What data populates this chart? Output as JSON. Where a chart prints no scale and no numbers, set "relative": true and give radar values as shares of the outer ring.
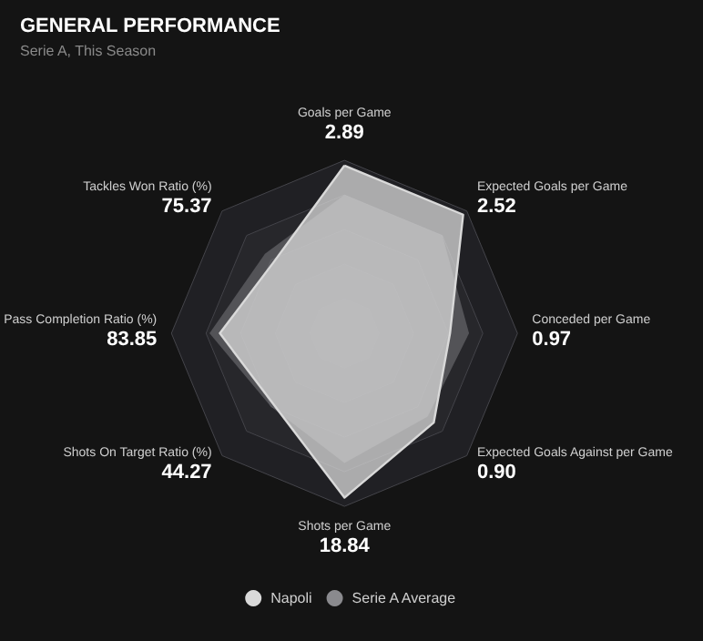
{
  "chart_data": {
    "type": "radar",
    "title": "GENERAL PERFORMANCE",
    "subtitle": "Serie A, This Season",
    "relative": true,
    "categories": [
      "Goals per Game\n2.89",
      "Expected Goals per Game\n2.52",
      "Conceded per Game\n0.97",
      "Expected Goals Against per Game\n0.90",
      "Shots per Game\n18.84",
      "Shots On Target Ratio (%)\n44.27",
      "Pass Completion Ratio (%)\n83.85",
      "Tackles Won Ratio (%)\n75.37"
    ],
    "series": [
      {
        "name": "Napoli",
        "color": "#d9d9d9",
        "values": [
          0.97,
          0.97,
          0.61,
          0.73,
          0.95,
          0.58,
          0.72,
          0.58
        ]
      },
      {
        "name": "Serie A Average",
        "color": "#8a8a8e",
        "values": [
          0.8,
          0.8,
          0.72,
          0.68,
          0.75,
          0.6,
          0.78,
          0.65
        ]
      }
    ],
    "legend": "bottom"
  }
}
